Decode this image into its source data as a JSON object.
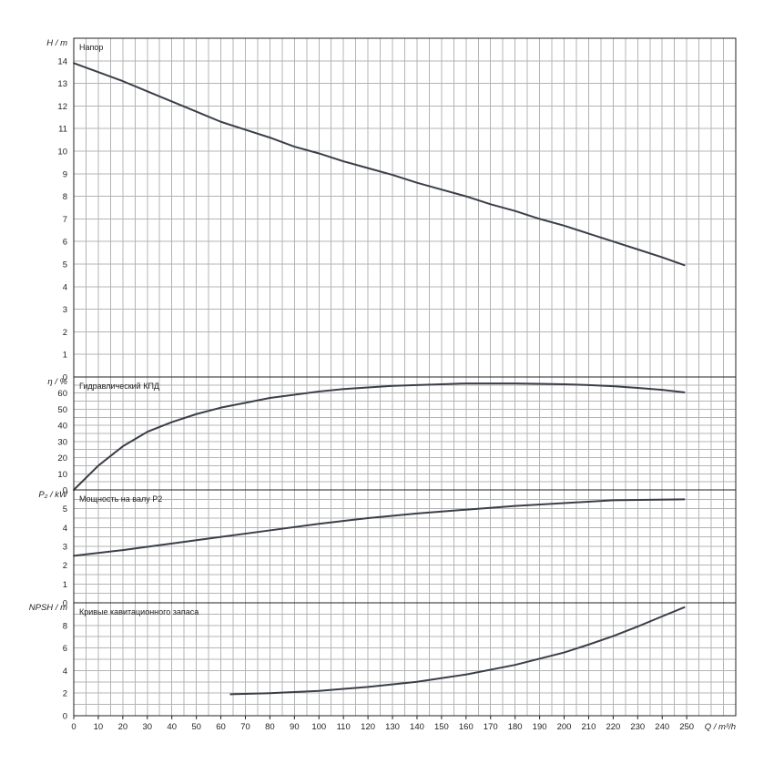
{
  "chart_data": [
    {
      "type": "line",
      "title": "Напор",
      "ylabel": "H / m",
      "ylim": [
        0,
        15
      ],
      "yticks": [
        0,
        1,
        2,
        3,
        4,
        5,
        6,
        7,
        8,
        9,
        10,
        11,
        12,
        13,
        14
      ],
      "x": [
        0,
        10,
        20,
        30,
        40,
        50,
        60,
        70,
        80,
        90,
        100,
        110,
        120,
        130,
        140,
        150,
        160,
        170,
        180,
        190,
        200,
        210,
        220,
        230,
        240,
        249
      ],
      "y": [
        13.9,
        13.5,
        13.1,
        12.65,
        12.2,
        11.75,
        11.3,
        10.95,
        10.6,
        10.2,
        9.9,
        9.55,
        9.25,
        8.95,
        8.6,
        8.3,
        8.0,
        7.65,
        7.35,
        7.0,
        6.7,
        6.35,
        6.0,
        5.65,
        5.3,
        4.95
      ]
    },
    {
      "type": "line",
      "title": "Гидравлический КПД",
      "ylabel": "η / %",
      "ylim": [
        0,
        70
      ],
      "yticks": [
        0,
        10,
        20,
        30,
        40,
        50,
        60
      ],
      "x": [
        0,
        10,
        20,
        30,
        40,
        50,
        60,
        70,
        80,
        90,
        100,
        110,
        120,
        130,
        140,
        150,
        160,
        170,
        180,
        190,
        200,
        210,
        220,
        230,
        240,
        249
      ],
      "y": [
        0,
        15,
        27,
        36,
        42,
        47,
        51,
        54,
        57,
        59,
        61,
        62.5,
        63.5,
        64.5,
        65,
        65.5,
        66,
        66,
        66,
        65.8,
        65.5,
        65,
        64.3,
        63.2,
        62,
        60.5
      ]
    },
    {
      "type": "line",
      "title": "Мощность на валу P2",
      "ylabel": "P₂ / kW",
      "ylim": [
        0,
        6
      ],
      "yticks": [
        0,
        1,
        2,
        3,
        4,
        5
      ],
      "x": [
        0,
        20,
        40,
        60,
        80,
        100,
        120,
        140,
        160,
        180,
        200,
        220,
        249
      ],
      "y": [
        2.5,
        2.8,
        3.15,
        3.5,
        3.85,
        4.2,
        4.5,
        4.75,
        4.95,
        5.15,
        5.3,
        5.45,
        5.5
      ]
    },
    {
      "type": "line",
      "title": "Кривые кавитационного запаса",
      "ylabel": "NPSH / m",
      "ylim": [
        0,
        10
      ],
      "yticks": [
        0,
        2,
        4,
        6,
        8
      ],
      "x": [
        64,
        80,
        100,
        120,
        140,
        160,
        180,
        200,
        210,
        220,
        230,
        240,
        249
      ],
      "y": [
        1.9,
        2.0,
        2.2,
        2.55,
        3.0,
        3.65,
        4.5,
        5.6,
        6.3,
        7.05,
        7.9,
        8.8,
        9.6
      ]
    }
  ],
  "x_axis": {
    "label": "Q / m³/h",
    "xlim": [
      0,
      270
    ],
    "ticks": [
      0,
      10,
      20,
      30,
      40,
      50,
      60,
      70,
      80,
      90,
      100,
      110,
      120,
      130,
      140,
      150,
      160,
      170,
      180,
      190,
      200,
      210,
      220,
      230,
      240,
      250
    ]
  }
}
